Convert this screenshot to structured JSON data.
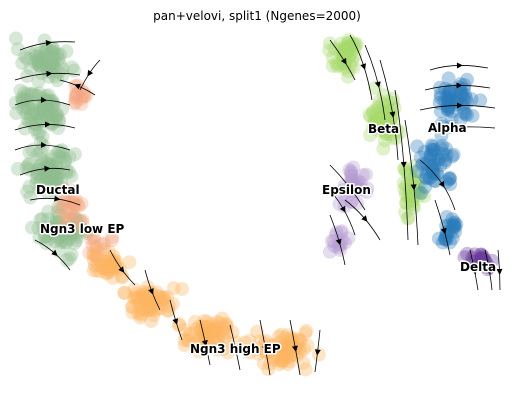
{
  "chart_data": {
    "type": "scatter",
    "subtype": "embedding-with-velocity-streamlines",
    "title": "pan+velovi, split1 (Ngenes=2000)",
    "xlabel": "",
    "ylabel": "",
    "axes_visible": false,
    "grid": false,
    "legend": "on-data cluster labels",
    "clusters": [
      {
        "name": "Ductal",
        "color": "#8fbc8f"
      },
      {
        "name": "Ngn3 low EP",
        "color": "#f4a582"
      },
      {
        "name": "Ngn3 high EP",
        "color": "#fdb462"
      },
      {
        "name": "Beta",
        "color": "#a6d96a"
      },
      {
        "name": "Alpha",
        "color": "#2b7bba"
      },
      {
        "name": "Epsilon",
        "color": "#b59ad1"
      },
      {
        "name": "Delta",
        "color": "#6a3d9a"
      }
    ]
  }
}
